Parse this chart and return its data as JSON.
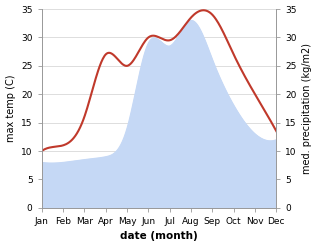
{
  "months": [
    "Jan",
    "Feb",
    "Mar",
    "Apr",
    "May",
    "Jun",
    "Jul",
    "Aug",
    "Sep",
    "Oct",
    "Nov",
    "Dec"
  ],
  "temp": [
    10.0,
    11.0,
    16.0,
    27.0,
    25.0,
    30.0,
    29.5,
    33.5,
    34.0,
    27.0,
    20.0,
    13.5
  ],
  "precip": [
    8.0,
    8.0,
    8.5,
    9.0,
    14.0,
    29.0,
    28.5,
    33.0,
    26.0,
    18.0,
    13.0,
    12.0
  ],
  "temp_color": "#c0392b",
  "precip_fill_color": "#c5d8f5",
  "precip_edge_color": "#c5d8f5",
  "ylim": [
    0,
    35
  ],
  "yticks": [
    0,
    5,
    10,
    15,
    20,
    25,
    30,
    35
  ],
  "xlabel": "date (month)",
  "ylabel_left": "max temp (C)",
  "ylabel_right": "med. precipitation (kg/m2)",
  "bg_color": "#ffffff",
  "grid_color": "#d0d0d0",
  "label_fontsize": 7,
  "tick_fontsize": 6.5,
  "xlabel_fontsize": 7.5,
  "temp_linewidth": 1.5,
  "spine_color": "#999999"
}
